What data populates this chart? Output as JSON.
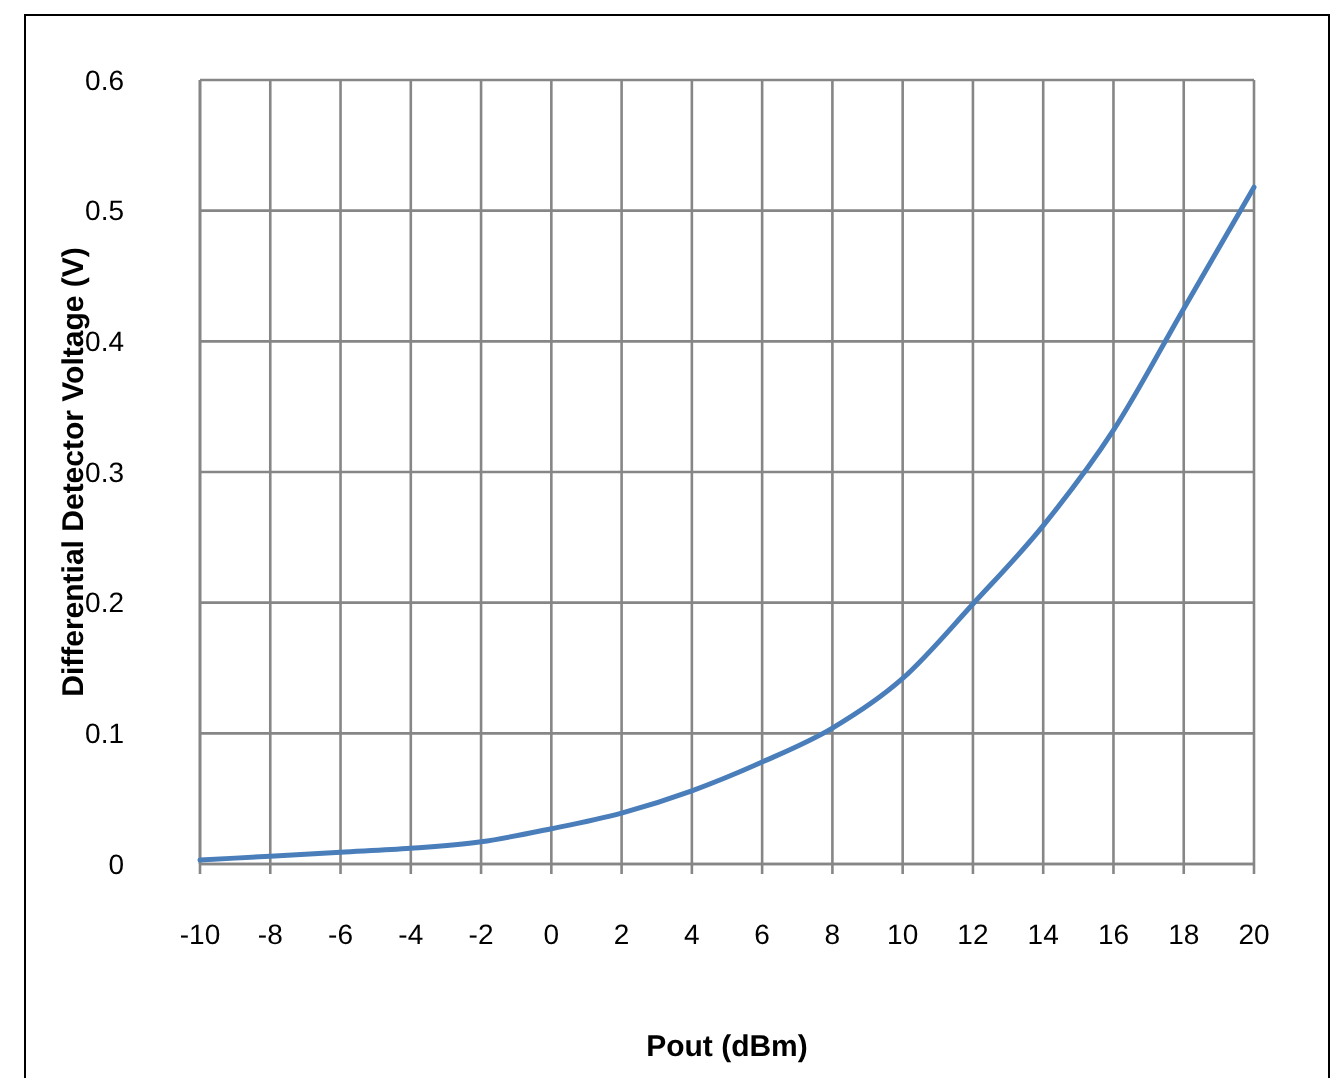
{
  "chart_data": {
    "type": "line",
    "xlabel": "Pout (dBm)",
    "ylabel": "Differential Detector Voltage (V)",
    "x": [
      -10,
      -8,
      -6,
      -4,
      -2,
      0,
      2,
      4,
      6,
      8,
      10,
      12,
      14,
      16,
      18,
      20
    ],
    "series": [
      {
        "color": "#4a7ebb",
        "values": [
          0.003,
          0.006,
          0.009,
          0.012,
          0.017,
          0.027,
          0.039,
          0.056,
          0.078,
          0.104,
          0.142,
          0.199,
          0.259,
          0.332,
          0.425,
          0.518
        ]
      }
    ],
    "xlim": [
      -10,
      20
    ],
    "ylim": [
      0,
      0.6
    ],
    "xticks": [
      -10,
      -8,
      -6,
      -4,
      -2,
      0,
      2,
      4,
      6,
      8,
      10,
      12,
      14,
      16,
      18,
      20
    ],
    "yticks": [
      0,
      0.1,
      0.2,
      0.3,
      0.4,
      0.5,
      0.6
    ],
    "grid": true,
    "line_style": "solid"
  }
}
